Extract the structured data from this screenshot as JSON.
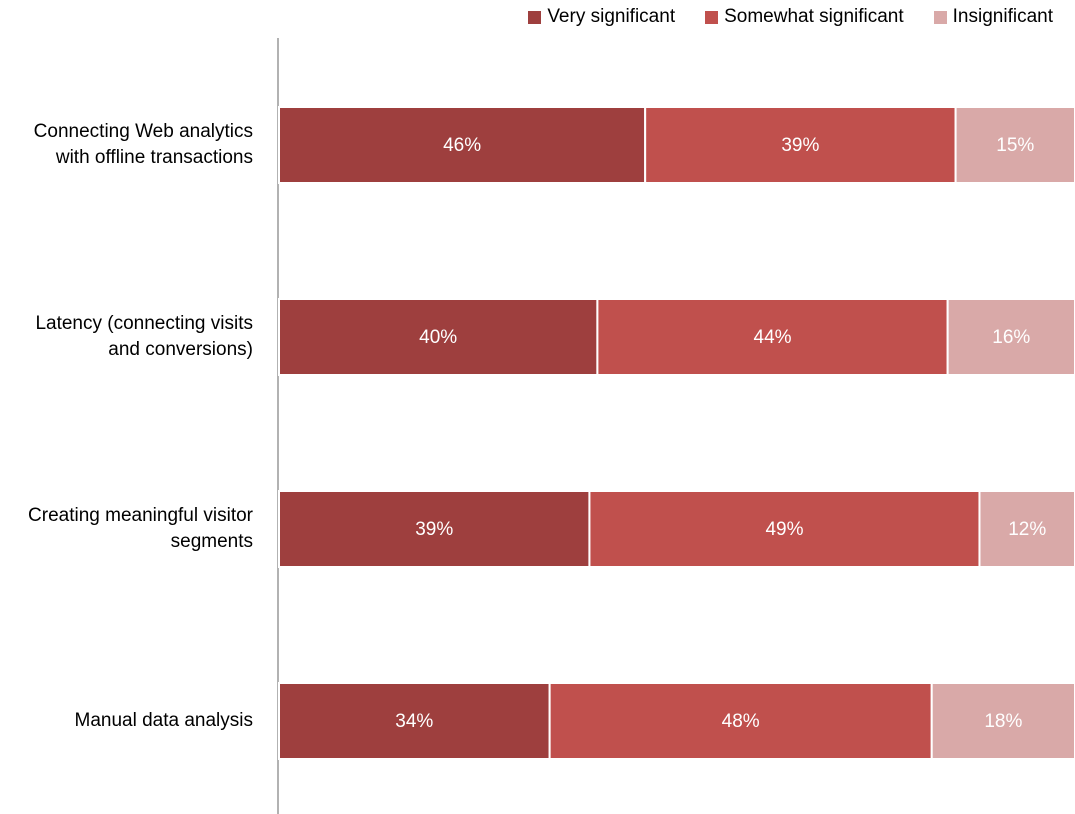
{
  "chart_data": {
    "type": "stacked-bar-horizontal",
    "categories": [
      "Connecting Web analytics with offline transactions",
      "Latency (connecting visits and conversions)",
      "Creating meaningful visitor segments",
      "Manual data analysis"
    ],
    "series": [
      {
        "name": "Very significant",
        "color": "#9e3f3e",
        "values": [
          46,
          40,
          39,
          34
        ],
        "value_labels": [
          "46%",
          "40%",
          "39%",
          "34%"
        ]
      },
      {
        "name": "Somewhat significant",
        "color": "#c0504d",
        "values": [
          39,
          44,
          49,
          48
        ],
        "value_labels": [
          "39%",
          "44%",
          "49%",
          "48%"
        ]
      },
      {
        "name": "Insignificant",
        "color": "#d9a9a8",
        "values": [
          15,
          16,
          12,
          18
        ],
        "value_labels": [
          "15%",
          "16%",
          "12%",
          "18%"
        ]
      }
    ],
    "xlim": [
      0,
      100
    ],
    "legend": "top"
  }
}
